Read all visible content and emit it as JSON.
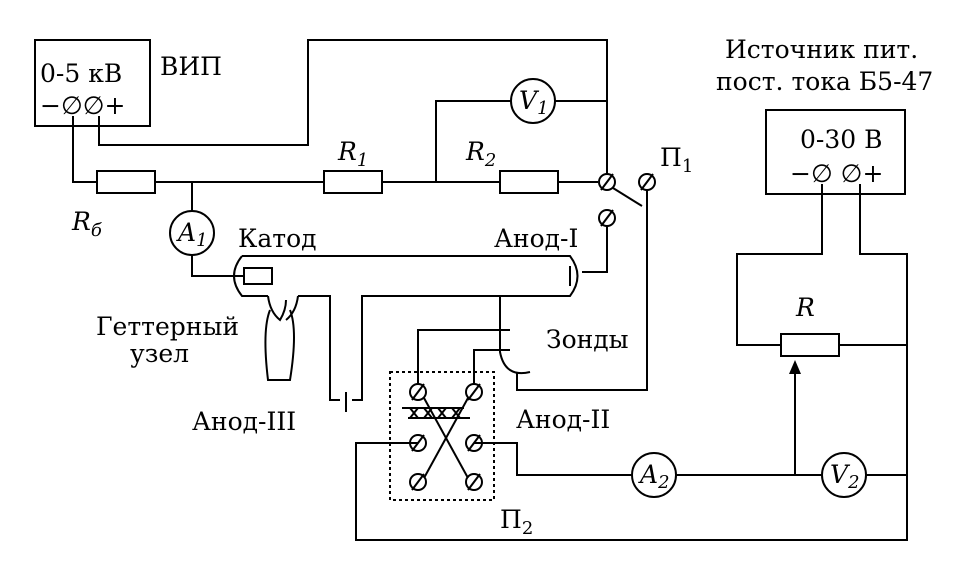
{
  "labels": {
    "vip": "ВИП",
    "vip_range": "0-5 кВ",
    "vip_polarity": "−∅∅+",
    "source_line1": "Источник пит.",
    "source_line2": "пост. тока Б5-47",
    "source_range": "0-30 В",
    "source_polarity": "−∅ ∅+",
    "v1": "V",
    "v1_sub": "1",
    "r1": "R",
    "r1_sub": "1",
    "r2": "R",
    "r2_sub": "2",
    "rb": "R",
    "rb_sub": "б",
    "a1": "A",
    "a1_sub": "1",
    "p1": "П",
    "p1_sub": "1",
    "cathode": "Катод",
    "anode1": "Анод-I",
    "getter1": "Геттерный",
    "getter2": "узел",
    "probes": "Зонды",
    "anode3": "Анод-III",
    "anode2": "Анод-II",
    "r": "R",
    "a2": "A",
    "a2_sub": "2",
    "v2": "V",
    "v2_sub": "2",
    "p2": "П",
    "p2_sub": "2"
  }
}
